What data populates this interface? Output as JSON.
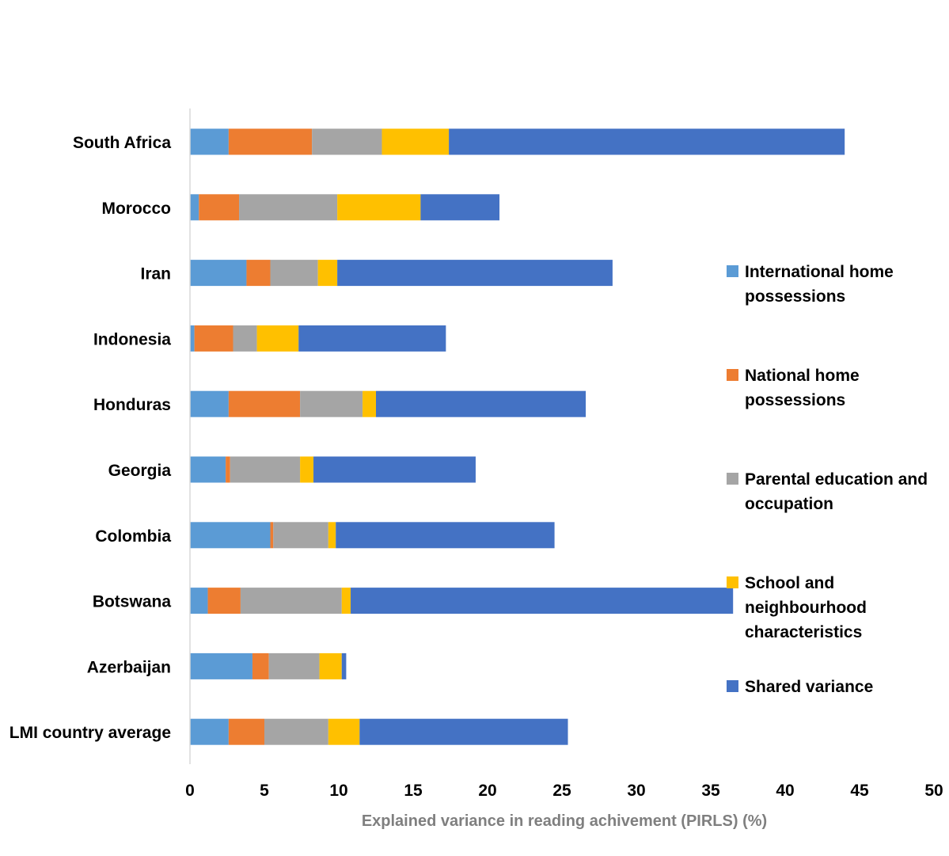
{
  "chart_data": {
    "type": "bar",
    "orientation": "horizontal",
    "stacked": true,
    "categories": [
      "South Africa",
      "Morocco",
      "Iran",
      "Indonesia",
      "Honduras",
      "Georgia",
      "Colombia",
      "Botswana",
      "Azerbaijan",
      "LMI country average"
    ],
    "series": [
      {
        "name": "International home possessions",
        "legend_lines": [
          "International home",
          "possessions"
        ],
        "color": "#5b9bd5",
        "values": [
          2.6,
          0.6,
          3.8,
          0.3,
          2.6,
          2.4,
          5.4,
          1.2,
          4.2,
          2.6
        ]
      },
      {
        "name": "National home possessions",
        "legend_lines": [
          "National home",
          "possessions"
        ],
        "color": "#ed7d31",
        "values": [
          5.6,
          2.7,
          1.6,
          2.6,
          4.8,
          0.3,
          0.2,
          2.2,
          1.1,
          2.4
        ]
      },
      {
        "name": "Parental education and occupation",
        "legend_lines": [
          "Parental education and",
          "occupation"
        ],
        "color": "#a5a5a5",
        "values": [
          4.7,
          6.6,
          3.2,
          1.6,
          4.2,
          4.7,
          3.7,
          6.8,
          3.4,
          4.3
        ]
      },
      {
        "name": "School and neighbourhood characteristics",
        "legend_lines": [
          "School and",
          "neighbourhood",
          "characteristics"
        ],
        "color": "#ffc000",
        "values": [
          4.5,
          5.6,
          1.3,
          2.8,
          0.9,
          0.9,
          0.5,
          0.6,
          1.5,
          2.1
        ]
      },
      {
        "name": "Shared variance",
        "legend_lines": [
          "Shared variance"
        ],
        "color": "#4472c4",
        "values": [
          26.6,
          5.3,
          18.5,
          9.9,
          14.1,
          10.9,
          14.7,
          25.7,
          0.3,
          14.0
        ]
      }
    ],
    "xlabel": "Explained variance in reading achivement (PIRLS) (%)",
    "ylabel": "",
    "title": "",
    "xlim": [
      0,
      50
    ],
    "xticks": [
      0,
      5,
      10,
      15,
      20,
      25,
      30,
      35,
      40,
      45,
      50
    ],
    "grid": false,
    "legend_position": "right"
  }
}
